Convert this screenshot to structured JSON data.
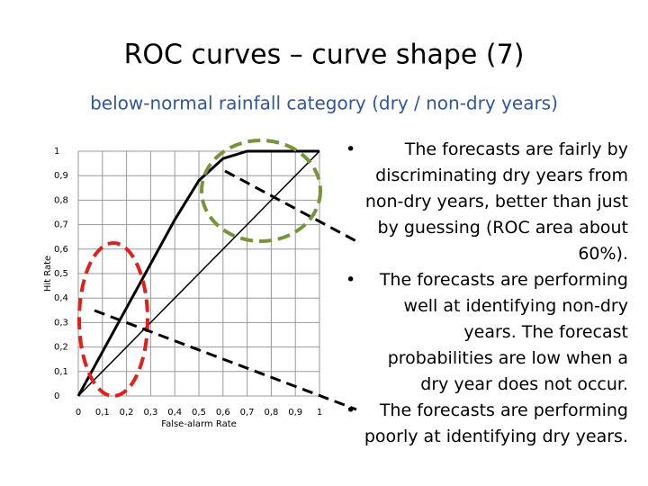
{
  "slide": {
    "title": "ROC curves – curve shape (7)",
    "subtitle": "below-normal rainfall category (dry / non-dry years)",
    "bullets": [
      "The forecasts are fairly by discriminating dry years from non-dry years, better than just by guessing (ROC area about  60%).",
      "The forecasts are performing well at identifying non-dry years. The forecast probabilities are low when a dry year does not occur.",
      "The forecasts are performing poorly at identifying dry years."
    ]
  },
  "chart_data": {
    "type": "line",
    "x_label": "False-alarm Rate",
    "y_label": "Hit Rate",
    "x": [
      0,
      0.1,
      0.2,
      0.3,
      0.4,
      0.5,
      0.6,
      0.7,
      0.8,
      0.9,
      1
    ],
    "series": [
      {
        "color": "#000000",
        "values": [
          0,
          0.18,
          0.36,
          0.54,
          0.72,
          0.88,
          0.97,
          1,
          1,
          1,
          1
        ]
      },
      {
        "color": "#000000",
        "values": [
          0,
          0.1,
          0.2,
          0.3,
          0.4,
          0.5,
          0.6,
          0.7,
          0.8,
          0.9,
          1
        ]
      }
    ],
    "xlim": [
      0,
      1
    ],
    "ylim": [
      0,
      1
    ],
    "xticks": [
      0,
      {
        "value": 0.1,
        "label": "0,1"
      },
      {
        "value": 0.2,
        "label": "0,2"
      },
      {
        "value": 0.3,
        "label": "0,3"
      },
      {
        "value": 0.4,
        "label": "0,4"
      },
      {
        "value": 0.5,
        "label": "0,5"
      },
      {
        "value": 0.6,
        "label": "0,6"
      },
      {
        "value": 0.7,
        "label": "0,7"
      },
      {
        "value": 0.8,
        "label": "0,8"
      },
      {
        "value": 0.9,
        "label": "0,9"
      },
      1
    ],
    "yticks": [
      0,
      {
        "value": 0.1,
        "label": "0,1"
      },
      {
        "value": 0.2,
        "label": "0,2"
      },
      {
        "value": 0.3,
        "label": "0,3"
      },
      {
        "value": 0.4,
        "label": "0,4"
      },
      {
        "value": 0.5,
        "label": "0,5"
      },
      {
        "value": 0.6,
        "label": "0,6"
      },
      {
        "value": 0.7,
        "label": "0,7"
      },
      {
        "value": 0.8,
        "label": "0,8"
      },
      {
        "value": 0.9,
        "label": "0,9"
      },
      1
    ],
    "grid": true
  }
}
